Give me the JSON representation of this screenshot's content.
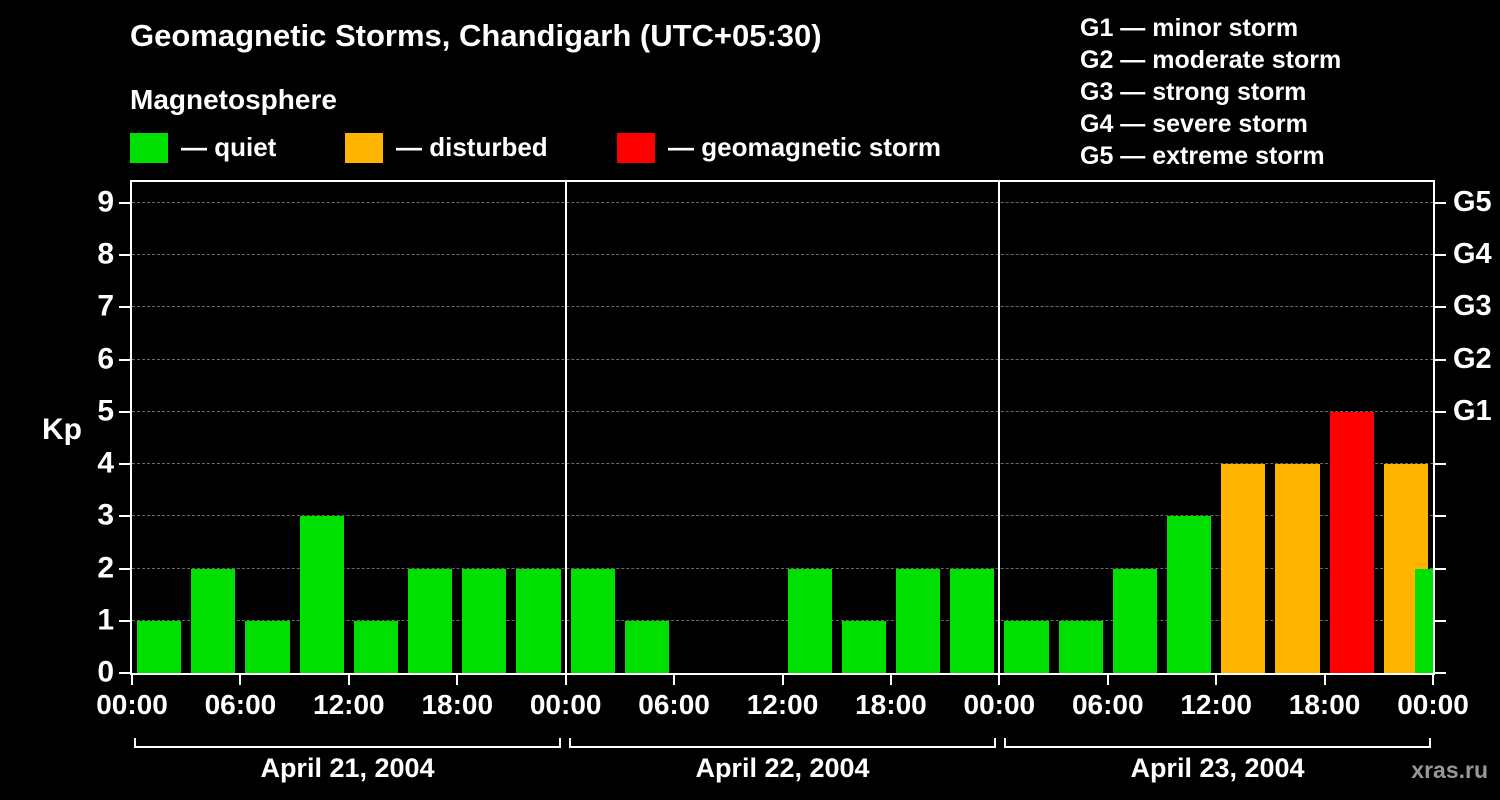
{
  "title": "Geomagnetic Storms, Chandigarh (UTC+05:30)",
  "subtitle": "Magnetosphere",
  "legend": {
    "items": [
      {
        "id": "quiet",
        "label": "— quiet",
        "color": "#00e000"
      },
      {
        "id": "disturbed",
        "label": "— disturbed",
        "color": "#ffb400"
      },
      {
        "id": "storm",
        "label": "— geomagnetic storm",
        "color": "#ff0000"
      }
    ]
  },
  "storm_scale": [
    "G1 — minor storm",
    "G2 — moderate storm",
    "G3 — strong storm",
    "G4 — severe storm",
    "G5 — extreme storm"
  ],
  "watermark": "xras.ru",
  "chart_data": {
    "type": "bar",
    "title": "Geomagnetic Storms, Chandigarh (UTC+05:30)",
    "ylabel": "Kp",
    "ylim": [
      0,
      9.4
    ],
    "yticks": [
      0,
      1,
      2,
      3,
      4,
      5,
      6,
      7,
      8,
      9
    ],
    "grid": "horizontal-dashed",
    "legend_position": "top",
    "bar_interval_hours": 3,
    "x_tick_labels": [
      "00:00",
      "06:00",
      "12:00",
      "18:00",
      "00:00",
      "06:00",
      "12:00",
      "18:00",
      "00:00",
      "06:00",
      "12:00",
      "18:00",
      "00:00"
    ],
    "right_axis": [
      {
        "label": "G1",
        "value": 5
      },
      {
        "label": "G2",
        "value": 6
      },
      {
        "label": "G3",
        "value": 7
      },
      {
        "label": "G4",
        "value": 8
      },
      {
        "label": "G5",
        "value": 9
      }
    ],
    "days": [
      {
        "date": "April 21, 2004",
        "kp_values": [
          1,
          2,
          1,
          3,
          1,
          2,
          2,
          2
        ]
      },
      {
        "date": "April 22, 2004",
        "kp_values": [
          2,
          1,
          0,
          0,
          2,
          1,
          2,
          2
        ]
      },
      {
        "date": "April 23, 2004",
        "kp_values": [
          1,
          1,
          2,
          3,
          4,
          4,
          5,
          4
        ]
      }
    ],
    "next_day_partial_kp": 2,
    "colors": {
      "quiet": "#00e000",
      "disturbed": "#ffb400",
      "storm": "#ff0000"
    },
    "color_thresholds": {
      "disturbed_at": 4,
      "storm_at": 5
    }
  }
}
